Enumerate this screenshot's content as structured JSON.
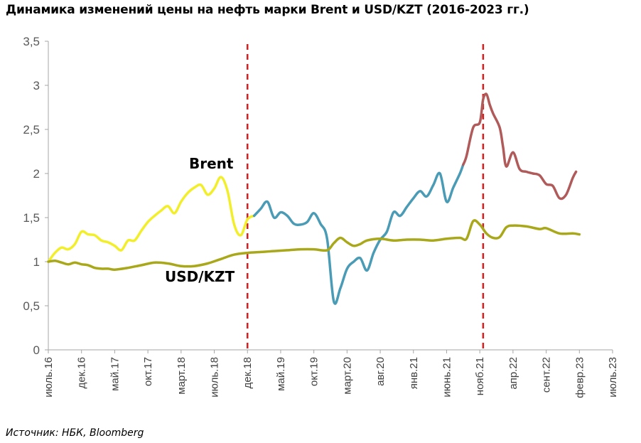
{
  "title": "Динамика изменений цены на нефть марки Brent и USD/KZT (2016-2023 гг.)",
  "source": "Источник: НБК, Bloomberg",
  "chart_data": {
    "type": "line",
    "title": "Динамика изменений цены на нефть марки Brent и USD/KZT (2016-2023 гг.)",
    "xlabel": "",
    "ylabel": "",
    "ylim": [
      0,
      3.5
    ],
    "y_ticks": [
      "0",
      "0,5",
      "1",
      "1,5",
      "2",
      "2,5",
      "3",
      "3,5"
    ],
    "x_ticks": [
      "июль.16",
      "дек.16",
      "май.17",
      "окт.17",
      "март.18",
      "июль.18",
      "дек.18",
      "май.19",
      "окт.19",
      "март.20",
      "авг.20",
      "янв.21",
      "июнь.21",
      "нояб.21",
      "апр.22",
      "сент.22",
      "февр.23",
      "июль.23"
    ],
    "x_range_months": [
      0,
      84
    ],
    "grid": false,
    "vertical_markers": [
      {
        "at_month": 30,
        "color": "#d62020",
        "style": "dashed"
      },
      {
        "at_month": 65.5,
        "color": "#d62020",
        "style": "dashed"
      }
    ],
    "series": [
      {
        "name": "Brent",
        "label": "Brent",
        "segments": [
          {
            "color": "#f2ef2a",
            "points": [
              [
                0,
                1.0
              ],
              [
                1,
                1.1
              ],
              [
                2,
                1.16
              ],
              [
                3,
                1.14
              ],
              [
                4,
                1.2
              ],
              [
                5,
                1.34
              ],
              [
                6,
                1.31
              ],
              [
                7,
                1.3
              ],
              [
                8,
                1.24
              ],
              [
                9,
                1.22
              ],
              [
                10,
                1.18
              ],
              [
                11,
                1.13
              ],
              [
                12,
                1.24
              ],
              [
                13,
                1.24
              ],
              [
                14,
                1.35
              ],
              [
                15,
                1.45
              ],
              [
                16,
                1.52
              ],
              [
                17,
                1.58
              ],
              [
                18,
                1.63
              ],
              [
                19,
                1.55
              ],
              [
                20,
                1.68
              ],
              [
                21,
                1.78
              ],
              [
                22,
                1.84
              ],
              [
                23,
                1.87
              ],
              [
                24,
                1.76
              ],
              [
                25,
                1.83
              ],
              [
                26,
                1.96
              ],
              [
                27,
                1.8
              ],
              [
                28,
                1.42
              ],
              [
                29,
                1.3
              ],
              [
                30,
                1.48
              ],
              [
                31,
                1.52
              ]
            ]
          },
          {
            "color": "#4a9bb5",
            "points": [
              [
                31,
                1.52
              ],
              [
                32,
                1.6
              ],
              [
                33,
                1.68
              ],
              [
                34,
                1.5
              ],
              [
                35,
                1.56
              ],
              [
                36,
                1.52
              ],
              [
                37,
                1.43
              ],
              [
                38,
                1.42
              ],
              [
                39,
                1.45
              ],
              [
                40,
                1.55
              ],
              [
                41,
                1.43
              ],
              [
                42,
                1.26
              ],
              [
                43,
                0.55
              ],
              [
                44,
                0.7
              ],
              [
                45,
                0.92
              ],
              [
                46,
                1.0
              ],
              [
                47,
                1.04
              ],
              [
                48,
                0.9
              ],
              [
                49,
                1.1
              ],
              [
                50,
                1.25
              ],
              [
                51,
                1.34
              ],
              [
                52,
                1.56
              ],
              [
                53,
                1.52
              ],
              [
                54,
                1.62
              ],
              [
                55,
                1.72
              ],
              [
                56,
                1.8
              ],
              [
                57,
                1.74
              ],
              [
                58,
                1.87
              ],
              [
                59,
                2.0
              ],
              [
                60,
                1.68
              ],
              [
                61,
                1.84
              ],
              [
                62,
                2.0
              ],
              [
                62.5,
                2.1
              ]
            ]
          },
          {
            "color": "#b05a5a",
            "points": [
              [
                62.5,
                2.1
              ],
              [
                63,
                2.2
              ],
              [
                64,
                2.52
              ],
              [
                65,
                2.58
              ],
              [
                65.5,
                2.84
              ],
              [
                66,
                2.9
              ],
              [
                66.5,
                2.78
              ],
              [
                67,
                2.68
              ],
              [
                68,
                2.52
              ],
              [
                68.5,
                2.3
              ],
              [
                69,
                2.08
              ],
              [
                70,
                2.24
              ],
              [
                71,
                2.05
              ],
              [
                72,
                2.02
              ],
              [
                73,
                2.0
              ],
              [
                74,
                1.98
              ],
              [
                75,
                1.88
              ],
              [
                76,
                1.86
              ],
              [
                77,
                1.72
              ],
              [
                78,
                1.76
              ],
              [
                79,
                1.95
              ],
              [
                79.5,
                2.02
              ]
            ]
          }
        ]
      },
      {
        "name": "USD/KZT",
        "label": "USD/KZT",
        "color": "#a8a81a",
        "points": [
          [
            0,
            1.0
          ],
          [
            1,
            1.01
          ],
          [
            2,
            0.99
          ],
          [
            3,
            0.97
          ],
          [
            4,
            0.99
          ],
          [
            5,
            0.97
          ],
          [
            6,
            0.96
          ],
          [
            7,
            0.93
          ],
          [
            8,
            0.92
          ],
          [
            9,
            0.92
          ],
          [
            10,
            0.91
          ],
          [
            12,
            0.93
          ],
          [
            14,
            0.96
          ],
          [
            16,
            0.99
          ],
          [
            18,
            0.98
          ],
          [
            20,
            0.95
          ],
          [
            22,
            0.95
          ],
          [
            24,
            0.98
          ],
          [
            26,
            1.03
          ],
          [
            28,
            1.08
          ],
          [
            30,
            1.1
          ],
          [
            32,
            1.11
          ],
          [
            34,
            1.12
          ],
          [
            36,
            1.13
          ],
          [
            38,
            1.14
          ],
          [
            40,
            1.14
          ],
          [
            42,
            1.13
          ],
          [
            43,
            1.21
          ],
          [
            44,
            1.27
          ],
          [
            45,
            1.22
          ],
          [
            46,
            1.18
          ],
          [
            47,
            1.2
          ],
          [
            48,
            1.24
          ],
          [
            50,
            1.26
          ],
          [
            52,
            1.24
          ],
          [
            54,
            1.25
          ],
          [
            56,
            1.25
          ],
          [
            58,
            1.24
          ],
          [
            60,
            1.26
          ],
          [
            62,
            1.27
          ],
          [
            63,
            1.26
          ],
          [
            64,
            1.46
          ],
          [
            65,
            1.42
          ],
          [
            66,
            1.32
          ],
          [
            67,
            1.27
          ],
          [
            68,
            1.28
          ],
          [
            69,
            1.39
          ],
          [
            70,
            1.41
          ],
          [
            72,
            1.4
          ],
          [
            74,
            1.37
          ],
          [
            75,
            1.38
          ],
          [
            77,
            1.32
          ],
          [
            79,
            1.32
          ],
          [
            80,
            1.31
          ]
        ]
      }
    ]
  }
}
